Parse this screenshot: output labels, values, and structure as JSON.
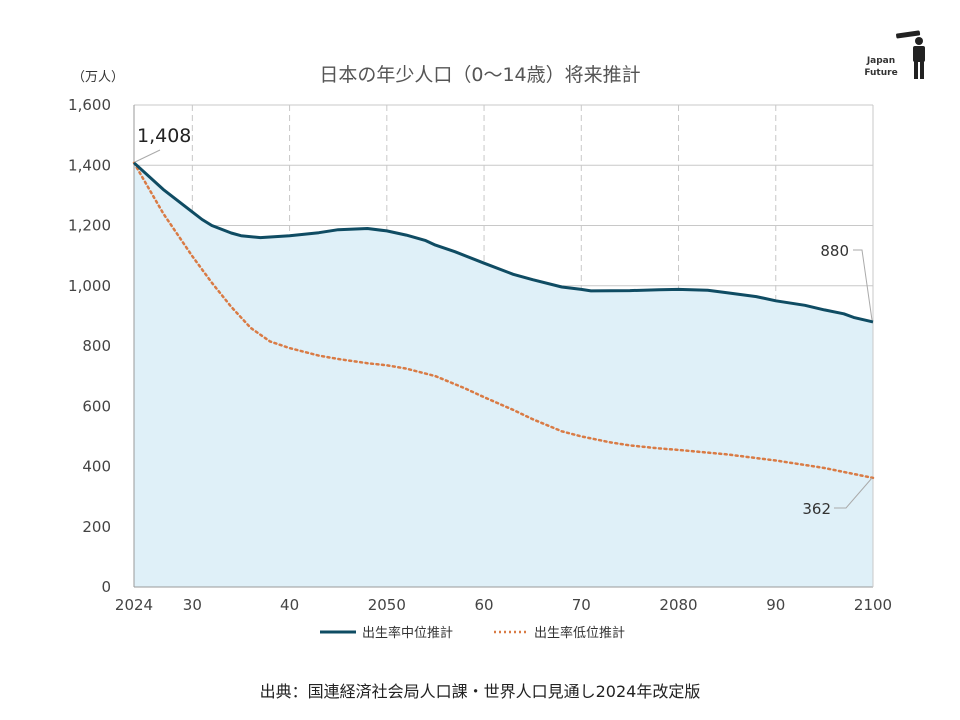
{
  "chart_data": {
    "type": "line",
    "title": "日本の年少人口（0～14歳）将来推計",
    "ylabel": "（万人）",
    "xlim": [
      2024,
      2100
    ],
    "ylim": [
      0,
      1600
    ],
    "y_ticks": [
      0,
      200,
      400,
      600,
      800,
      1000,
      1200,
      1400,
      1600
    ],
    "y_tick_labels": [
      "0",
      "200",
      "400",
      "600",
      "800",
      "1,000",
      "1,200",
      "1,400",
      "1,600"
    ],
    "x_ticks": [
      2024,
      2030,
      2040,
      2050,
      2060,
      2070,
      2080,
      2090,
      2100
    ],
    "x_tick_labels": [
      "2024",
      "30",
      "40",
      "2050",
      "60",
      "70",
      "2080",
      "90",
      "2100"
    ],
    "grid": "horizontal solid, vertical dashed",
    "legend_position": "bottom",
    "series": [
      {
        "name": "出生率中位推計",
        "style": "solid",
        "color": "#0f4c63",
        "fill": "#dff0f8",
        "points": [
          [
            2024,
            1408
          ],
          [
            2027,
            1320
          ],
          [
            2030,
            1245
          ],
          [
            2031,
            1220
          ],
          [
            2032,
            1200
          ],
          [
            2034,
            1175
          ],
          [
            2035,
            1166
          ],
          [
            2037,
            1160
          ],
          [
            2040,
            1166
          ],
          [
            2043,
            1176
          ],
          [
            2045,
            1186
          ],
          [
            2048,
            1190
          ],
          [
            2050,
            1182
          ],
          [
            2052,
            1168
          ],
          [
            2054,
            1150
          ],
          [
            2055,
            1135
          ],
          [
            2057,
            1113
          ],
          [
            2060,
            1075
          ],
          [
            2063,
            1038
          ],
          [
            2065,
            1020
          ],
          [
            2068,
            996
          ],
          [
            2070,
            988
          ],
          [
            2071,
            983
          ],
          [
            2075,
            984
          ],
          [
            2078,
            987
          ],
          [
            2080,
            988
          ],
          [
            2083,
            985
          ],
          [
            2085,
            977
          ],
          [
            2088,
            964
          ],
          [
            2090,
            950
          ],
          [
            2093,
            935
          ],
          [
            2095,
            920
          ],
          [
            2097,
            907
          ],
          [
            2098,
            895
          ],
          [
            2100,
            880
          ]
        ]
      },
      {
        "name": "出生率低位推計",
        "style": "dotted",
        "color": "#d97b45",
        "points": [
          [
            2024,
            1408
          ],
          [
            2027,
            1240
          ],
          [
            2030,
            1098
          ],
          [
            2032,
            1010
          ],
          [
            2034,
            930
          ],
          [
            2036,
            860
          ],
          [
            2038,
            815
          ],
          [
            2040,
            793
          ],
          [
            2043,
            768
          ],
          [
            2045,
            757
          ],
          [
            2048,
            743
          ],
          [
            2050,
            736
          ],
          [
            2052,
            725
          ],
          [
            2055,
            700
          ],
          [
            2058,
            660
          ],
          [
            2060,
            630
          ],
          [
            2063,
            588
          ],
          [
            2065,
            557
          ],
          [
            2068,
            517
          ],
          [
            2070,
            500
          ],
          [
            2073,
            480
          ],
          [
            2075,
            470
          ],
          [
            2078,
            460
          ],
          [
            2080,
            455
          ],
          [
            2085,
            440
          ],
          [
            2090,
            420
          ],
          [
            2095,
            395
          ],
          [
            2100,
            362
          ]
        ]
      }
    ],
    "annotations": {
      "start_value": "1,408",
      "end_mid_value": "880",
      "end_low_value": "362"
    }
  },
  "source": "出典：国連経済社会局人口課・世界人口見通し2024年改定版",
  "logo": {
    "line1": "Japan",
    "line2": "Future",
    "icon": "telescope-figure-icon"
  }
}
